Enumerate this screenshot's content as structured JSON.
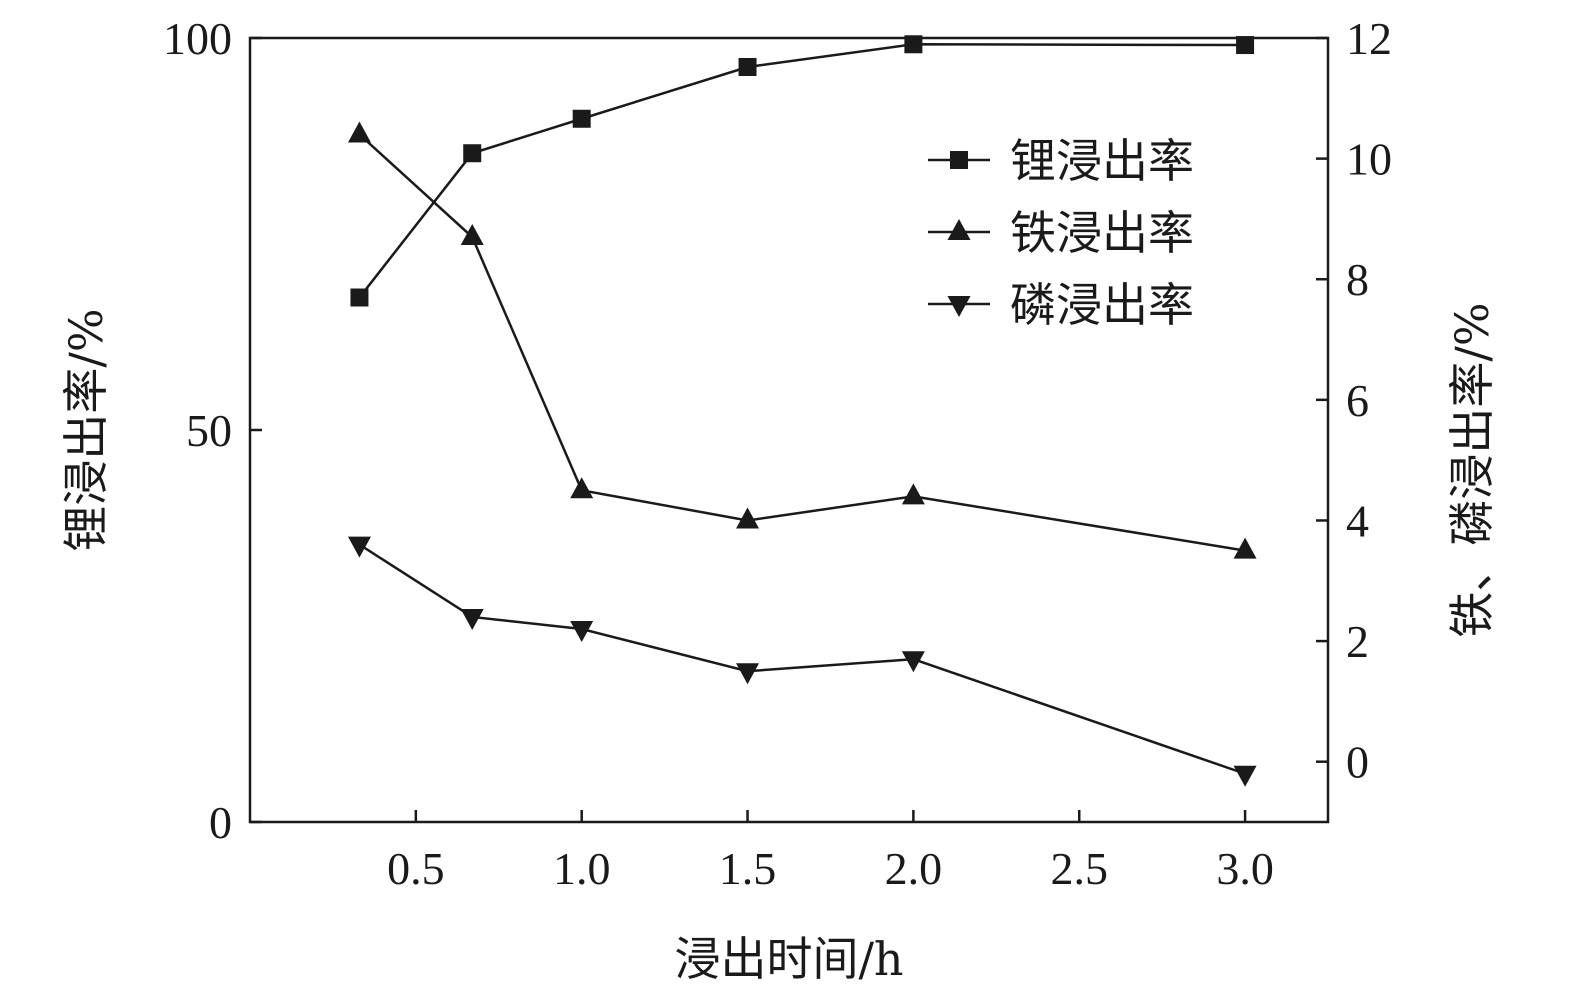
{
  "chart_data": {
    "type": "line",
    "xlabel": "浸出时间/h",
    "ylabel_left": "锂浸出率/%",
    "ylabel_right": "铁、磷浸出率/%",
    "x_ticks": [
      "0.5",
      "1.0",
      "1.5",
      "2.0",
      "2.5",
      "3.0"
    ],
    "y_left_ticks": [
      "0",
      "50",
      "100"
    ],
    "y_right_ticks": [
      "0",
      "2",
      "4",
      "6",
      "8",
      "10",
      "12"
    ],
    "xlim": [
      0,
      3.25
    ],
    "ylim_left": [
      0,
      100
    ],
    "ylim_right": [
      -1,
      12
    ],
    "grid": false,
    "legend_position": "top-right",
    "x": [
      0.33,
      0.67,
      1.0,
      1.5,
      2.0,
      3.0
    ],
    "series": [
      {
        "name": "锂浸出率",
        "axis": "left",
        "marker": "square",
        "values": [
          66.9,
          85.3,
          89.7,
          96.3,
          99.2,
          99.1
        ]
      },
      {
        "name": "铁浸出率",
        "axis": "right",
        "marker": "triangle-up",
        "values": [
          10.4,
          8.7,
          4.5,
          4.0,
          4.4,
          3.5
        ]
      },
      {
        "name": "磷浸出率",
        "axis": "right",
        "marker": "triangle-down",
        "values": [
          3.6,
          2.4,
          2.2,
          1.5,
          1.7,
          -0.2
        ]
      }
    ],
    "colors": {
      "line": "#1a1a1a",
      "background": "#ffffff"
    }
  }
}
